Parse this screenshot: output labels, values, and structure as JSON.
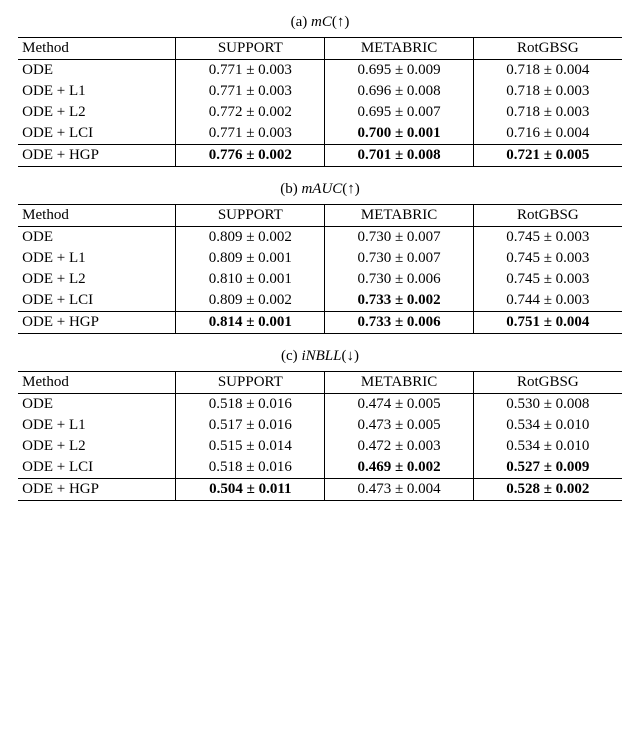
{
  "tables": [
    {
      "caption_prefix": "(a) ",
      "caption_metric": "mC",
      "caption_arrow": "(↑)",
      "header_method": "Method",
      "columns": [
        "SUPPORT",
        "METABRIC",
        "RotGBSG"
      ],
      "rows": [
        {
          "method": "ODE",
          "c1": "0.771 ± 0.003",
          "b1": false,
          "c2": "0.695 ± 0.009",
          "b2": false,
          "c3": "0.718 ± 0.004",
          "b3": false
        },
        {
          "method": "ODE + L1",
          "c1": "0.771 ± 0.003",
          "b1": false,
          "c2": "0.696 ± 0.008",
          "b2": false,
          "c3": "0.718 ± 0.003",
          "b3": false
        },
        {
          "method": "ODE + L2",
          "c1": "0.772 ± 0.002",
          "b1": false,
          "c2": "0.695 ± 0.007",
          "b2": false,
          "c3": "0.718 ± 0.003",
          "b3": false
        },
        {
          "method": "ODE + LCI",
          "c1": "0.771 ± 0.003",
          "b1": false,
          "c2": "0.700 ± 0.001",
          "b2": true,
          "c3": "0.716 ± 0.004",
          "b3": false
        }
      ],
      "last": {
        "method": "ODE + HGP",
        "c1": "0.776 ± 0.002",
        "b1": true,
        "c2": "0.701 ± 0.008",
        "b2": true,
        "c3": "0.721 ± 0.005",
        "b3": true
      }
    },
    {
      "caption_prefix": "(b) ",
      "caption_metric": "mAUC",
      "caption_arrow": "(↑)",
      "header_method": "Method",
      "columns": [
        "SUPPORT",
        "METABRIC",
        "RotGBSG"
      ],
      "rows": [
        {
          "method": "ODE",
          "c1": "0.809 ± 0.002",
          "b1": false,
          "c2": "0.730 ± 0.007",
          "b2": false,
          "c3": "0.745 ± 0.003",
          "b3": false
        },
        {
          "method": "ODE + L1",
          "c1": "0.809 ± 0.001",
          "b1": false,
          "c2": "0.730 ± 0.007",
          "b2": false,
          "c3": "0.745 ± 0.003",
          "b3": false
        },
        {
          "method": "ODE + L2",
          "c1": "0.810 ± 0.001",
          "b1": false,
          "c2": "0.730 ± 0.006",
          "b2": false,
          "c3": "0.745 ± 0.003",
          "b3": false
        },
        {
          "method": "ODE + LCI",
          "c1": "0.809 ± 0.002",
          "b1": false,
          "c2": "0.733 ± 0.002",
          "b2": true,
          "c3": "0.744 ± 0.003",
          "b3": false
        }
      ],
      "last": {
        "method": "ODE + HGP",
        "c1": "0.814 ± 0.001",
        "b1": true,
        "c2": "0.733 ± 0.006",
        "b2": true,
        "c3": "0.751 ± 0.004",
        "b3": true
      }
    },
    {
      "caption_prefix": "(c) ",
      "caption_metric": "iNBLL",
      "caption_arrow": "(↓)",
      "header_method": "Method",
      "columns": [
        "SUPPORT",
        "METABRIC",
        "RotGBSG"
      ],
      "rows": [
        {
          "method": "ODE",
          "c1": "0.518 ± 0.016",
          "b1": false,
          "c2": "0.474 ± 0.005",
          "b2": false,
          "c3": "0.530 ± 0.008",
          "b3": false
        },
        {
          "method": "ODE + L1",
          "c1": "0.517 ± 0.016",
          "b1": false,
          "c2": "0.473 ± 0.005",
          "b2": false,
          "c3": "0.534 ± 0.010",
          "b3": false
        },
        {
          "method": "ODE + L2",
          "c1": "0.515 ± 0.014",
          "b1": false,
          "c2": "0.472 ± 0.003",
          "b2": false,
          "c3": "0.534 ± 0.010",
          "b3": false
        },
        {
          "method": "ODE + LCI",
          "c1": "0.518 ± 0.016",
          "b1": false,
          "c2": "0.469 ± 0.002",
          "b2": true,
          "c3": "0.527 ± 0.009",
          "b3": true
        }
      ],
      "last": {
        "method": "ODE + HGP",
        "c1": "0.504 ± 0.011",
        "b1": true,
        "c2": "0.473 ± 0.004",
        "b2": false,
        "c3": "0.528 ± 0.002",
        "b3": true
      }
    }
  ]
}
